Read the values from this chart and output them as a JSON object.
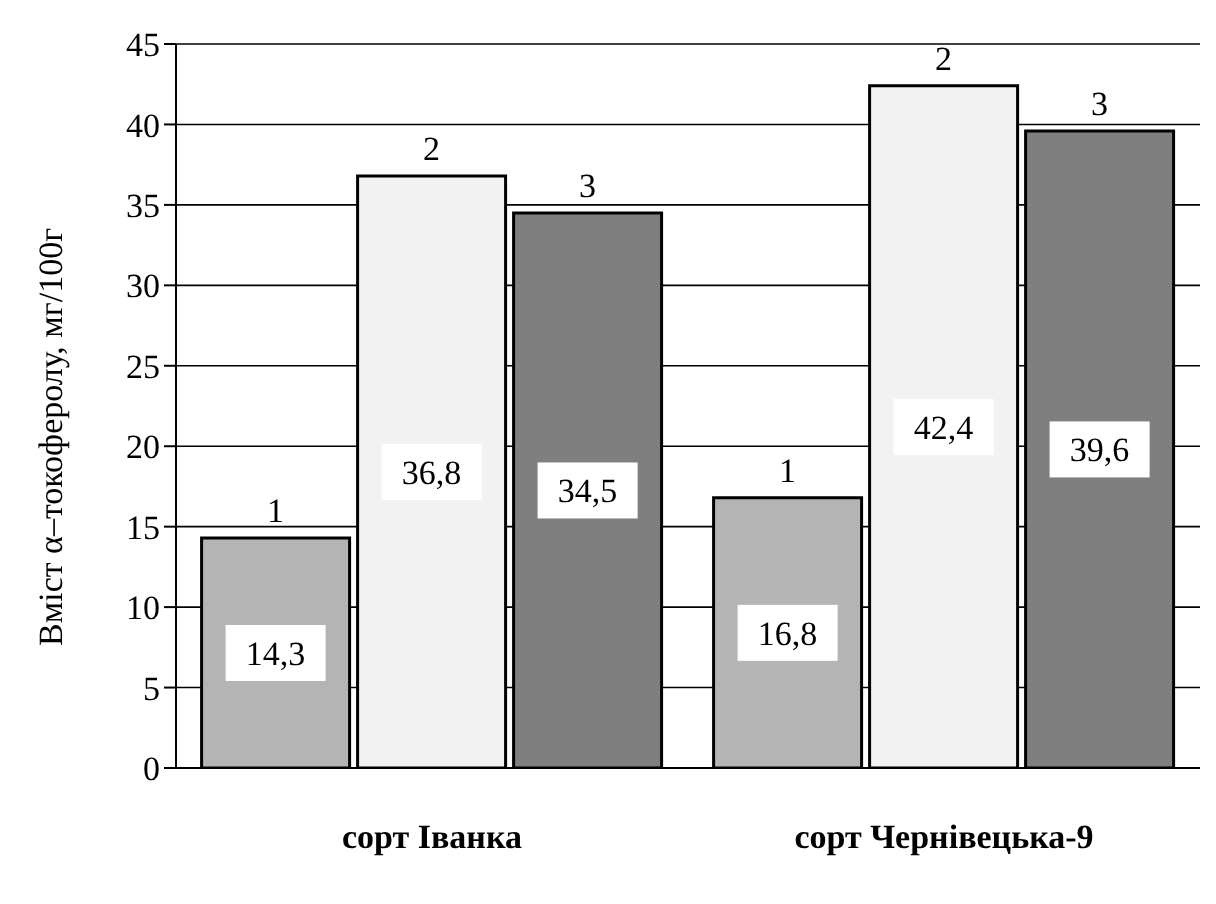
{
  "chart_data": {
    "type": "bar",
    "ylabel": "Вміст α–токоферолу, мг/100г",
    "categories": [
      "сорт Іванка",
      "сорт Чернівецька-9"
    ],
    "series": [
      {
        "name": "1",
        "color": "#b4b4b4",
        "values": [
          14.3,
          16.8
        ],
        "value_labels": [
          "14,3",
          "16,8"
        ]
      },
      {
        "name": "2",
        "color": "#f2f2f2",
        "values": [
          36.8,
          42.4
        ],
        "value_labels": [
          "36,8",
          "42,4"
        ]
      },
      {
        "name": "3",
        "color": "#7f7f7f",
        "values": [
          34.5,
          39.6
        ],
        "value_labels": [
          "34,5",
          "39,6"
        ]
      }
    ],
    "ylim": [
      0,
      45
    ],
    "yticks": [
      0,
      5,
      10,
      15,
      20,
      25,
      30,
      35,
      40,
      45
    ],
    "grid": "y"
  }
}
